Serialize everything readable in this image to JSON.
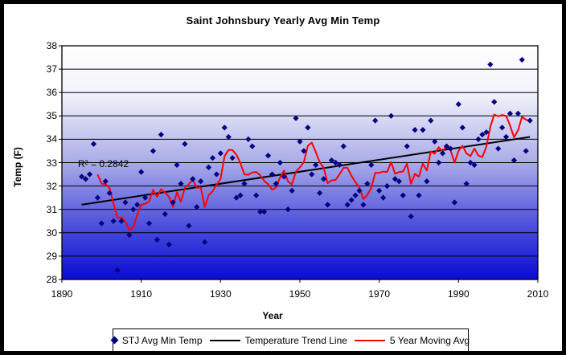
{
  "title": "Saint Johnsbury Yearly Avg Min Temp",
  "annotation": {
    "r_squared_label": "R² = 0.2842"
  },
  "colors": {
    "scatter": "#000080",
    "trend": "#000000",
    "moving_avg": "#ff0000",
    "gridline": "#000000",
    "plot_border": "#000000",
    "frame": "#000000",
    "background_top": "#ffffff",
    "background_mid": "#a9abe8",
    "background_bottom": "#0a0cd2"
  },
  "legend": {
    "items": [
      {
        "label": "STJ Avg Min Temp",
        "marker": "diamond",
        "color": "#000080"
      },
      {
        "label": "Temperature Trend Line",
        "marker": "line",
        "color": "#000000"
      },
      {
        "label": "5 Year Moving Avg",
        "marker": "line",
        "color": "#ff0000"
      }
    ]
  },
  "chart_data": {
    "type": "scatter",
    "title": "Saint Johnsbury Yearly Avg Min Temp",
    "xlabel": "Year",
    "ylabel": "Temp (F)",
    "xlim": [
      1890,
      2010
    ],
    "ylim": [
      28,
      38
    ],
    "x_ticks": [
      1890,
      1910,
      1930,
      1950,
      1970,
      1990,
      2010
    ],
    "y_ticks": [
      28,
      29,
      30,
      31,
      32,
      33,
      34,
      35,
      36,
      37,
      38
    ],
    "grid": "horizontal",
    "legend_position": "bottom",
    "series": [
      {
        "name": "STJ Avg Min Temp",
        "style": "points-diamond",
        "years": [
          1895,
          1896,
          1897,
          1898,
          1899,
          1900,
          1901,
          1902,
          1903,
          1904,
          1905,
          1906,
          1907,
          1908,
          1909,
          1910,
          1911,
          1912,
          1913,
          1914,
          1915,
          1916,
          1917,
          1918,
          1919,
          1920,
          1921,
          1922,
          1923,
          1924,
          1925,
          1926,
          1927,
          1928,
          1929,
          1930,
          1931,
          1932,
          1933,
          1934,
          1935,
          1936,
          1937,
          1938,
          1939,
          1940,
          1941,
          1942,
          1943,
          1944,
          1945,
          1946,
          1947,
          1948,
          1949,
          1950,
          1951,
          1952,
          1953,
          1954,
          1955,
          1956,
          1957,
          1958,
          1959,
          1960,
          1961,
          1962,
          1963,
          1964,
          1965,
          1966,
          1967,
          1968,
          1969,
          1970,
          1971,
          1972,
          1973,
          1974,
          1975,
          1976,
          1977,
          1978,
          1979,
          1980,
          1981,
          1982,
          1983,
          1984,
          1985,
          1986,
          1987,
          1988,
          1989,
          1990,
          1991,
          1992,
          1993,
          1994,
          1995,
          1996,
          1997,
          1998,
          1999,
          2000,
          2001,
          2002,
          2003,
          2004,
          2005,
          2006,
          2007,
          2008
        ],
        "values": [
          32.4,
          32.3,
          32.5,
          33.8,
          31.5,
          30.4,
          32.2,
          31.7,
          30.5,
          28.4,
          30.5,
          31.3,
          29.9,
          31.0,
          31.2,
          32.6,
          31.5,
          30.4,
          33.5,
          29.7,
          34.2,
          30.8,
          29.5,
          31.3,
          32.9,
          32.1,
          33.8,
          30.3,
          32.3,
          31.1,
          32.2,
          29.6,
          32.8,
          33.2,
          32.5,
          33.4,
          34.5,
          34.1,
          33.2,
          31.5,
          31.6,
          32.1,
          34.0,
          33.7,
          31.6,
          30.9,
          30.9,
          33.3,
          32.5,
          32.1,
          33.0,
          32.4,
          31.0,
          31.8,
          34.9,
          33.9,
          33.5,
          34.5,
          32.5,
          32.9,
          31.7,
          32.3,
          31.2,
          33.1,
          33.0,
          32.9,
          33.7,
          31.2,
          31.4,
          31.6,
          31.8,
          31.2,
          32.1,
          32.9,
          34.8,
          31.8,
          31.5,
          32.0,
          35.0,
          32.3,
          32.2,
          31.6,
          33.7,
          30.7,
          34.4,
          31.6,
          34.4,
          32.2,
          34.8,
          33.9,
          33.0,
          33.4,
          33.7,
          33.6,
          31.3,
          35.5,
          34.5,
          32.1,
          33.0,
          32.9,
          34.0,
          34.2,
          34.3,
          37.2,
          35.6,
          33.6,
          34.5,
          34.1,
          35.1,
          33.1,
          35.1,
          37.4,
          33.5,
          34.8
        ]
      },
      {
        "name": "Temperature Trend Line",
        "style": "straight-line",
        "x": [
          1895,
          2008
        ],
        "y": [
          31.2,
          34.1
        ],
        "r_squared": 0.2842
      },
      {
        "name": "5 Year Moving Avg",
        "style": "line",
        "derivation": "trailing 5-year mean of STJ Avg Min Temp, plotted 1899-2008"
      }
    ]
  }
}
